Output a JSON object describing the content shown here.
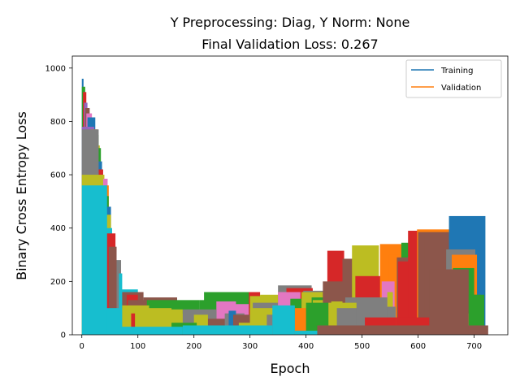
{
  "chart_data": {
    "type": "area",
    "title_line1": "Y Preprocessing: Diag, Y Norm: None",
    "title_line2": "Final Validation Loss: 0.267",
    "xlabel": "Epoch",
    "ylabel": "Binary Cross Entropy Loss",
    "xlim": [
      -17,
      760
    ],
    "ylim": [
      0,
      1045
    ],
    "xticks": [
      0,
      100,
      200,
      300,
      400,
      500,
      600,
      700
    ],
    "yticks": [
      0,
      200,
      400,
      600,
      800,
      1000
    ],
    "grid": false,
    "legend_position": "top-right",
    "series": [
      {
        "name": "Training",
        "color": "#1f77b4"
      },
      {
        "name": "Validation",
        "color": "#ff7f0e"
      }
    ],
    "blocks": [
      {
        "x0": 0,
        "x1": 3,
        "y": 960,
        "color": "#1f77b4"
      },
      {
        "x0": 0,
        "x1": 6,
        "y": 930,
        "color": "#2ca02c"
      },
      {
        "x0": 2,
        "x1": 8,
        "y": 910,
        "color": "#d62728"
      },
      {
        "x0": 4,
        "x1": 10,
        "y": 870,
        "color": "#9467bd"
      },
      {
        "x0": 6,
        "x1": 14,
        "y": 850,
        "color": "#8c564b"
      },
      {
        "x0": 8,
        "x1": 18,
        "y": 830,
        "color": "#e377c2"
      },
      {
        "x0": 10,
        "x1": 24,
        "y": 815,
        "color": "#1f77b4"
      },
      {
        "x0": 0,
        "x1": 22,
        "y": 780,
        "color": "#9467bd"
      },
      {
        "x0": 16,
        "x1": 28,
        "y": 770,
        "color": "#ff7f0e"
      },
      {
        "x0": 20,
        "x1": 30,
        "y": 750,
        "color": "#2ca02c"
      },
      {
        "x0": 24,
        "x1": 32,
        "y": 710,
        "color": "#bcbd22"
      },
      {
        "x0": 26,
        "x1": 34,
        "y": 700,
        "color": "#2ca02c"
      },
      {
        "x0": 28,
        "x1": 36,
        "y": 650,
        "color": "#1f77b4"
      },
      {
        "x0": 30,
        "x1": 38,
        "y": 620,
        "color": "#d62728"
      },
      {
        "x0": 32,
        "x1": 40,
        "y": 600,
        "color": "#ff7f0e"
      },
      {
        "x0": 0,
        "x1": 30,
        "y": 770,
        "color": "#7f7f7f"
      },
      {
        "x0": 0,
        "x1": 40,
        "y": 600,
        "color": "#bcbd22"
      },
      {
        "x0": 38,
        "x1": 46,
        "y": 585,
        "color": "#e377c2"
      },
      {
        "x0": 40,
        "x1": 48,
        "y": 560,
        "color": "#ff7f0e"
      },
      {
        "x0": 42,
        "x1": 48,
        "y": 520,
        "color": "#2ca02c"
      },
      {
        "x0": 44,
        "x1": 52,
        "y": 480,
        "color": "#1f77b4"
      },
      {
        "x0": 44,
        "x1": 52,
        "y": 450,
        "color": "#bcbd22"
      },
      {
        "x0": 44,
        "x1": 54,
        "y": 400,
        "color": "#17becf"
      },
      {
        "x0": 42,
        "x1": 60,
        "y": 380,
        "color": "#d62728"
      },
      {
        "x0": 48,
        "x1": 62,
        "y": 330,
        "color": "#8c564b"
      },
      {
        "x0": 62,
        "x1": 70,
        "y": 280,
        "color": "#7f7f7f"
      },
      {
        "x0": 66,
        "x1": 72,
        "y": 230,
        "color": "#17becf"
      },
      {
        "x0": 70,
        "x1": 100,
        "y": 170,
        "color": "#17becf"
      },
      {
        "x0": 72,
        "x1": 110,
        "y": 160,
        "color": "#8c564b"
      },
      {
        "x0": 80,
        "x1": 100,
        "y": 150,
        "color": "#d62728"
      },
      {
        "x0": 82,
        "x1": 112,
        "y": 130,
        "color": "#8c564b"
      },
      {
        "x0": 110,
        "x1": 170,
        "y": 140,
        "color": "#8c564b"
      },
      {
        "x0": 116,
        "x1": 210,
        "y": 130,
        "color": "#2ca02c"
      },
      {
        "x0": 210,
        "x1": 260,
        "y": 130,
        "color": "#2ca02c"
      },
      {
        "x0": 218,
        "x1": 300,
        "y": 160,
        "color": "#2ca02c"
      },
      {
        "x0": 240,
        "x1": 275,
        "y": 125,
        "color": "#e377c2"
      },
      {
        "x0": 245,
        "x1": 298,
        "y": 115,
        "color": "#e377c2"
      },
      {
        "x0": 298,
        "x1": 318,
        "y": 160,
        "color": "#d62728"
      },
      {
        "x0": 300,
        "x1": 340,
        "y": 145,
        "color": "#bcbd22"
      },
      {
        "x0": 318,
        "x1": 360,
        "y": 150,
        "color": "#bcbd22"
      },
      {
        "x0": 305,
        "x1": 350,
        "y": 120,
        "color": "#7f7f7f"
      },
      {
        "x0": 350,
        "x1": 410,
        "y": 185,
        "color": "#7f7f7f"
      },
      {
        "x0": 365,
        "x1": 412,
        "y": 175,
        "color": "#d62728"
      },
      {
        "x0": 350,
        "x1": 390,
        "y": 160,
        "color": "#e377c2"
      },
      {
        "x0": 372,
        "x1": 392,
        "y": 135,
        "color": "#2ca02c"
      },
      {
        "x0": 395,
        "x1": 440,
        "y": 165,
        "color": "#7f7f7f"
      },
      {
        "x0": 392,
        "x1": 445,
        "y": 160,
        "color": "#bcbd22"
      },
      {
        "x0": 410,
        "x1": 452,
        "y": 140,
        "color": "#2ca02c"
      },
      {
        "x0": 412,
        "x1": 440,
        "y": 130,
        "color": "#bcbd22"
      },
      {
        "x0": 438,
        "x1": 468,
        "y": 315,
        "color": "#d62728"
      },
      {
        "x0": 430,
        "x1": 468,
        "y": 200,
        "color": "#8c564b"
      },
      {
        "x0": 445,
        "x1": 490,
        "y": 125,
        "color": "#bcbd22"
      },
      {
        "x0": 465,
        "x1": 500,
        "y": 285,
        "color": "#8c564b"
      },
      {
        "x0": 482,
        "x1": 530,
        "y": 335,
        "color": "#bcbd22"
      },
      {
        "x0": 488,
        "x1": 512,
        "y": 265,
        "color": "#bcbd22"
      },
      {
        "x0": 488,
        "x1": 545,
        "y": 220,
        "color": "#d62728"
      },
      {
        "x0": 470,
        "x1": 545,
        "y": 140,
        "color": "#7f7f7f"
      },
      {
        "x0": 540,
        "x1": 555,
        "y": 260,
        "color": "#1f77b4"
      },
      {
        "x0": 532,
        "x1": 575,
        "y": 340,
        "color": "#ff7f0e"
      },
      {
        "x0": 548,
        "x1": 568,
        "y": 300,
        "color": "#ff7f0e"
      },
      {
        "x0": 535,
        "x1": 558,
        "y": 200,
        "color": "#e377c2"
      },
      {
        "x0": 545,
        "x1": 555,
        "y": 160,
        "color": "#bcbd22"
      },
      {
        "x0": 542,
        "x1": 560,
        "y": 105,
        "color": "#7f7f7f"
      },
      {
        "x0": 570,
        "x1": 585,
        "y": 345,
        "color": "#2ca02c"
      },
      {
        "x0": 562,
        "x1": 588,
        "y": 290,
        "color": "#8c564b"
      },
      {
        "x0": 564,
        "x1": 620,
        "y": 275,
        "color": "#d62728"
      },
      {
        "x0": 582,
        "x1": 620,
        "y": 390,
        "color": "#d62728"
      },
      {
        "x0": 598,
        "x1": 660,
        "y": 395,
        "color": "#ff7f0e"
      },
      {
        "x0": 600,
        "x1": 655,
        "y": 385,
        "color": "#8c564b"
      },
      {
        "x0": 612,
        "x1": 660,
        "y": 380,
        "color": "#8c564b"
      },
      {
        "x0": 655,
        "x1": 720,
        "y": 445,
        "color": "#1f77b4"
      },
      {
        "x0": 650,
        "x1": 702,
        "y": 320,
        "color": "#7f7f7f"
      },
      {
        "x0": 660,
        "x1": 705,
        "y": 300,
        "color": "#ff7f0e"
      },
      {
        "x0": 662,
        "x1": 700,
        "y": 250,
        "color": "#2ca02c"
      },
      {
        "x0": 690,
        "x1": 718,
        "y": 150,
        "color": "#2ca02c"
      },
      {
        "x0": 620,
        "x1": 690,
        "y": 245,
        "color": "#8c564b"
      },
      {
        "x0": 650,
        "x1": 710,
        "y": 80,
        "color": "#bcbd22"
      },
      {
        "x0": 690,
        "x1": 712,
        "y": 150,
        "color": "#2ca02c"
      },
      {
        "x0": 0,
        "x1": 720,
        "y": 0,
        "color": "#ffffff"
      },
      {
        "x0": 40,
        "x1": 75,
        "y": 100,
        "color": "#17becf"
      },
      {
        "x0": 72,
        "x1": 120,
        "y": 110,
        "color": "#bcbd22"
      },
      {
        "x0": 82,
        "x1": 130,
        "y": 95,
        "color": "#bcbd22"
      },
      {
        "x0": 88,
        "x1": 95,
        "y": 80,
        "color": "#d62728"
      },
      {
        "x0": 95,
        "x1": 160,
        "y": 100,
        "color": "#bcbd22"
      },
      {
        "x0": 140,
        "x1": 180,
        "y": 95,
        "color": "#bcbd22"
      },
      {
        "x0": 160,
        "x1": 200,
        "y": 80,
        "color": "#bcbd22"
      },
      {
        "x0": 180,
        "x1": 240,
        "y": 95,
        "color": "#7f7f7f"
      },
      {
        "x0": 200,
        "x1": 225,
        "y": 75,
        "color": "#bcbd22"
      },
      {
        "x0": 225,
        "x1": 260,
        "y": 60,
        "color": "#8c564b"
      },
      {
        "x0": 160,
        "x1": 205,
        "y": 45,
        "color": "#2ca02c"
      },
      {
        "x0": 255,
        "x1": 290,
        "y": 80,
        "color": "#7f7f7f"
      },
      {
        "x0": 262,
        "x1": 275,
        "y": 90,
        "color": "#1f77b4"
      },
      {
        "x0": 270,
        "x1": 300,
        "y": 75,
        "color": "#8c564b"
      },
      {
        "x0": 300,
        "x1": 350,
        "y": 100,
        "color": "#bcbd22"
      },
      {
        "x0": 280,
        "x1": 330,
        "y": 45,
        "color": "#bcbd22"
      },
      {
        "x0": 330,
        "x1": 390,
        "y": 75,
        "color": "#7f7f7f"
      },
      {
        "x0": 378,
        "x1": 392,
        "y": 60,
        "color": "#7f7f7f"
      },
      {
        "x0": 380,
        "x1": 425,
        "y": 100,
        "color": "#ff7f0e"
      },
      {
        "x0": 400,
        "x1": 440,
        "y": 120,
        "color": "#2ca02c"
      },
      {
        "x0": 420,
        "x1": 470,
        "y": 80,
        "color": "#2ca02c"
      },
      {
        "x0": 440,
        "x1": 500,
        "y": 120,
        "color": "#bcbd22"
      },
      {
        "x0": 455,
        "x1": 520,
        "y": 100,
        "color": "#7f7f7f"
      },
      {
        "x0": 490,
        "x1": 545,
        "y": 140,
        "color": "#7f7f7f"
      },
      {
        "x0": 505,
        "x1": 560,
        "y": 65,
        "color": "#d62728"
      },
      {
        "x0": 560,
        "x1": 620,
        "y": 65,
        "color": "#d62728"
      },
      {
        "x0": 420,
        "x1": 725,
        "y": 35,
        "color": "#8c564b"
      },
      {
        "x0": 0,
        "x1": 45,
        "y": 560,
        "color": "#17becf"
      },
      {
        "x0": 45,
        "x1": 180,
        "y": 30,
        "color": "#17becf"
      },
      {
        "x0": 180,
        "x1": 340,
        "y": 35,
        "color": "#17becf"
      },
      {
        "x0": 340,
        "x1": 380,
        "y": 110,
        "color": "#17becf"
      },
      {
        "x0": 380,
        "x1": 420,
        "y": 15,
        "color": "#17becf"
      },
      {
        "x0": 700,
        "x1": 720,
        "y": 35,
        "color": "#8c564b"
      },
      {
        "x0": 620,
        "x1": 690,
        "y": 245,
        "color": "#8c564b"
      }
    ]
  }
}
